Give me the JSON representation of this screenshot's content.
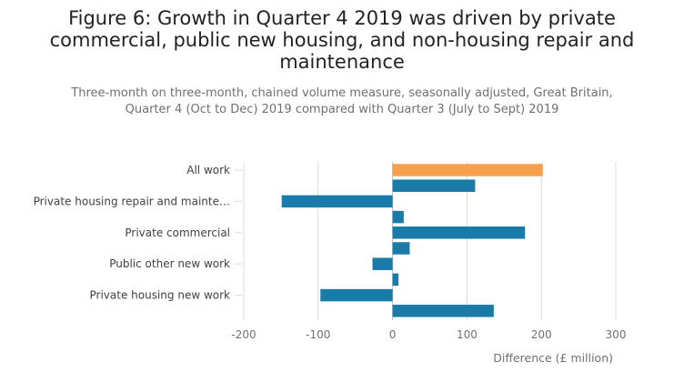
{
  "chart_data": {
    "type": "bar",
    "orientation": "horizontal",
    "title_lines": [
      "Figure 6: Growth in Quarter 4 2019 was driven by private",
      "commercial, public new housing, and non-housing repair and",
      "maintenance"
    ],
    "subtitle_lines": [
      "Three-month on three-month, chained volume measure, seasonally adjusted, Great Britain,",
      "Quarter 4 (Oct to Dec) 2019 compared with Quarter 3 (July to Sept) 2019"
    ],
    "xlabel": "Difference (£ million)",
    "xlim": [
      -200,
      300
    ],
    "xticks": [
      -200,
      -100,
      0,
      100,
      200,
      300
    ],
    "grid": true,
    "category_labels": [
      "All work",
      "",
      "Private housing repair and mainte…",
      "",
      "Private commercial",
      "",
      "Public other new work",
      "",
      "Private housing new work",
      ""
    ],
    "values": [
      202,
      111,
      -149,
      15,
      178,
      23,
      -27,
      8,
      -97,
      136
    ],
    "highlight_index": 0,
    "colors": {
      "bar": "#1a7aa8",
      "highlight": "#f6a04d",
      "grid": "#d8d8e6",
      "zero_line": "#bdbdd0"
    }
  }
}
